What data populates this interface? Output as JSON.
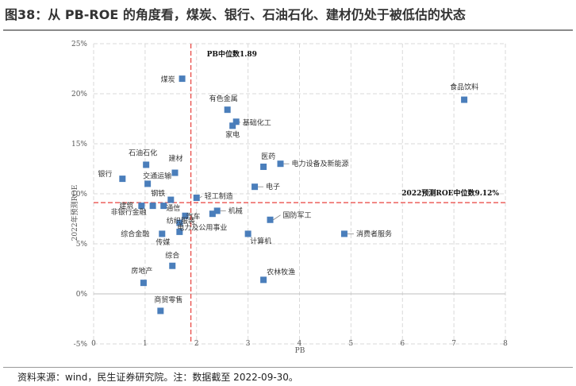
{
  "header": {
    "title": "图38：从 PB-ROE 的角度看，煤炭、银行、石油石化、建材仍处于被低估的状态"
  },
  "footer": {
    "source": "资料来源：wind，民生证券研究院。注：数据截至 2022-09-30。"
  },
  "colors": {
    "point": "#4a7ebb",
    "median_line": "#e8413c",
    "grid": "#d9d9d9",
    "axis": "#bfbfbf"
  },
  "chart_data": {
    "type": "scatter",
    "title": "",
    "xlabel": "PB",
    "ylabel": "2022年预测ROE",
    "xlim": [
      0,
      8
    ],
    "ylim": [
      -5,
      25
    ],
    "xticks": [
      0,
      1,
      2,
      3,
      4,
      5,
      6,
      7,
      8
    ],
    "yticks": [
      -5,
      0,
      5,
      10,
      15,
      20,
      25
    ],
    "xtick_labels": [
      "0",
      "1",
      "2",
      "3",
      "4",
      "5",
      "6",
      "7",
      "8"
    ],
    "ytick_labels": [
      "-5%",
      "0%",
      "5%",
      "10%",
      "15%",
      "20%",
      "25%"
    ],
    "grid": true,
    "points": [
      {
        "label": "食品饮料",
        "pb": 7.2,
        "roe": 19.4
      },
      {
        "label": "煤炭",
        "pb": 1.72,
        "roe": 21.5
      },
      {
        "label": "有色金属",
        "pb": 2.6,
        "roe": 18.4
      },
      {
        "label": "基础化工",
        "pb": 2.77,
        "roe": 17.2
      },
      {
        "label": "家电",
        "pb": 2.7,
        "roe": 16.8
      },
      {
        "label": "石油石化",
        "pb": 1.02,
        "roe": 12.9
      },
      {
        "label": "建材",
        "pb": 1.58,
        "roe": 12.1
      },
      {
        "label": "银行",
        "pb": 0.56,
        "roe": 11.5
      },
      {
        "label": "医药",
        "pb": 3.3,
        "roe": 12.7
      },
      {
        "label": "电力设备及新能源",
        "pb": 3.63,
        "roe": 13.0
      },
      {
        "label": "交通运输",
        "pb": 1.05,
        "roe": 11.0
      },
      {
        "label": "轻工制造",
        "pb": 2.0,
        "roe": 9.6
      },
      {
        "label": "电子",
        "pb": 3.13,
        "roe": 10.7
      },
      {
        "label": "钢铁",
        "pb": 1.5,
        "roe": 9.4
      },
      {
        "label": "建筑",
        "pb": 0.93,
        "roe": 8.8
      },
      {
        "label": "通信",
        "pb": 1.36,
        "roe": 8.8
      },
      {
        "label": "非银行金融",
        "pb": 1.15,
        "roe": 8.8
      },
      {
        "label": "机械",
        "pb": 2.4,
        "roe": 8.3
      },
      {
        "label": "汽车",
        "pb": 1.78,
        "roe": 7.8
      },
      {
        "label": "国防军工",
        "pb": 3.43,
        "roe": 7.4
      },
      {
        "label": "纺织服装",
        "pb": 2.31,
        "roe": 8.0
      },
      {
        "label": "电力及公用事业",
        "pb": 1.67,
        "roe": 7.1
      },
      {
        "label": "综合金融",
        "pb": 1.33,
        "roe": 6.0
      },
      {
        "label": "传媒",
        "pb": 1.67,
        "roe": 6.2
      },
      {
        "label": "计算机",
        "pb": 3.0,
        "roe": 6.0
      },
      {
        "label": "消费者服务",
        "pb": 4.87,
        "roe": 6.0
      },
      {
        "label": "综合",
        "pb": 1.53,
        "roe": 2.8
      },
      {
        "label": "房地产",
        "pb": 0.97,
        "roe": 1.1
      },
      {
        "label": "农林牧渔",
        "pb": 3.3,
        "roe": 1.4
      },
      {
        "label": "商贸零售",
        "pb": 1.3,
        "roe": -1.7
      }
    ],
    "median_lines": [
      {
        "axis": "x",
        "value": 1.89,
        "label": "PB中位数1.89"
      },
      {
        "axis": "y",
        "value": 9.12,
        "label": "2022预测ROE中位数9.12%"
      }
    ]
  }
}
